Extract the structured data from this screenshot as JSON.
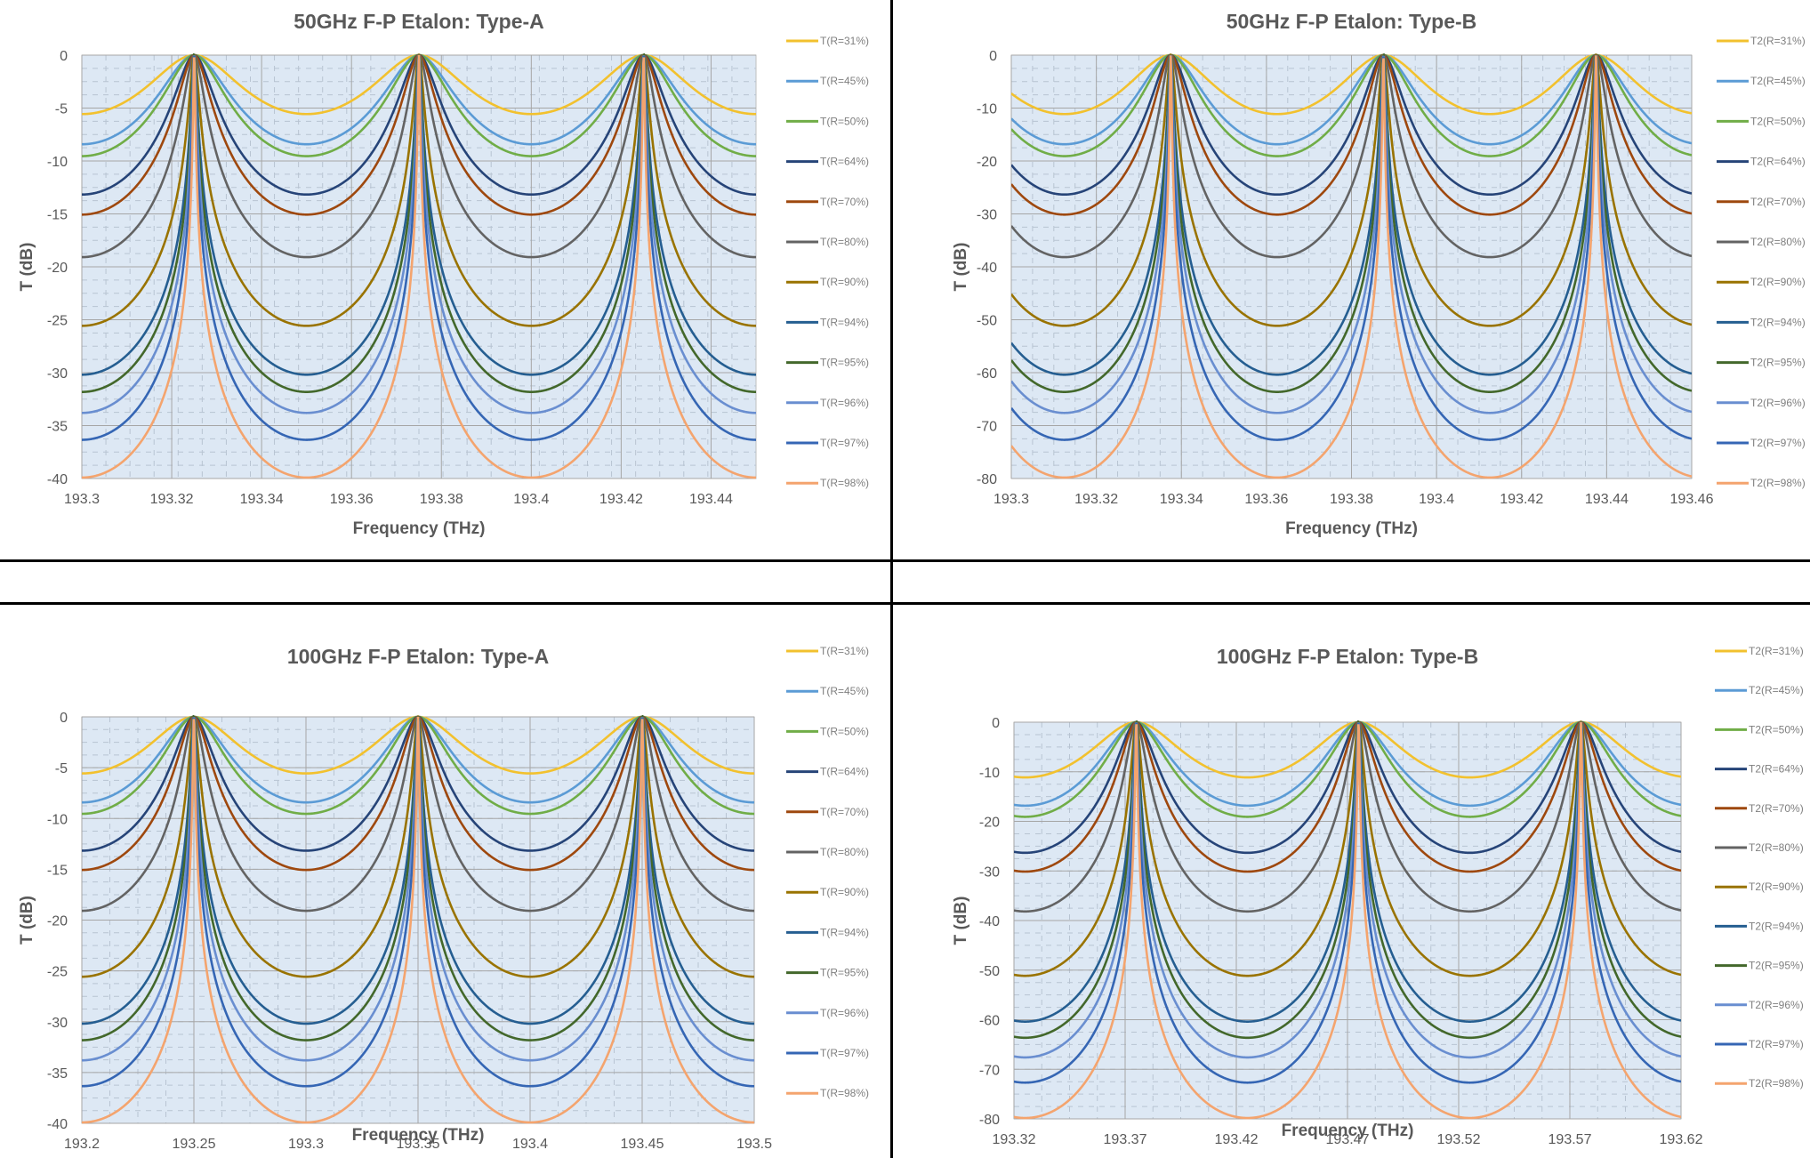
{
  "layout_text": "2x2 grid of Fabry-Perot etalon transmission charts",
  "series_meta": {
    "reflectivities": [
      31,
      45,
      50,
      64,
      70,
      80,
      90,
      94,
      95,
      96,
      97,
      98
    ],
    "colors": [
      "#f2c12e",
      "#5b9bd5",
      "#70ad47",
      "#264478",
      "#9e480e",
      "#636363",
      "#997300",
      "#255e91",
      "#43682b",
      "#698ed0",
      "#3566b4",
      "#f4a46e"
    ]
  },
  "chart_data": [
    {
      "id": "50a",
      "type": "line",
      "title": "50GHz F-P Etalon: Type-A",
      "xlabel": "Frequency (THz)",
      "ylabel": "T (dB)",
      "xlim": [
        193.3,
        193.45
      ],
      "ylim": [
        -40,
        0
      ],
      "xticks": [
        "193.3",
        "193.32",
        "193.34",
        "193.36",
        "193.38",
        "193.4",
        "193.42",
        "193.44"
      ],
      "xtick_values": [
        193.3,
        193.32,
        193.34,
        193.36,
        193.38,
        193.4,
        193.42,
        193.44
      ],
      "yticks": [
        "0",
        "-5",
        "-10",
        "-15",
        "-20",
        "-25",
        "-30",
        "-35",
        "-40"
      ],
      "ytick_values": [
        0,
        -5,
        -10,
        -15,
        -20,
        -25,
        -30,
        -35,
        -40
      ],
      "peaks_thz": [
        193.325,
        193.375,
        193.425
      ],
      "fsr_thz": 0.05,
      "power": 1,
      "grid": true,
      "legend_position": "right",
      "series": [
        {
          "name": "T(R=31%)",
          "R": 0.31,
          "min_db": -5.6
        },
        {
          "name": "T(R=45%)",
          "R": 0.45,
          "min_db": -8.4
        },
        {
          "name": "T(R=50%)",
          "R": 0.5,
          "min_db": -9.5
        },
        {
          "name": "T(R=64%)",
          "R": 0.64,
          "min_db": -13.2
        },
        {
          "name": "T(R=70%)",
          "R": 0.7,
          "min_db": -15.1
        },
        {
          "name": "T(R=80%)",
          "R": 0.8,
          "min_db": -19.1
        },
        {
          "name": "T(R=90%)",
          "R": 0.9,
          "min_db": -25.6
        },
        {
          "name": "T(R=94%)",
          "R": 0.94,
          "min_db": -30.2
        },
        {
          "name": "T(R=95%)",
          "R": 0.95,
          "min_db": -31.8
        },
        {
          "name": "T(R=96%)",
          "R": 0.96,
          "min_db": -33.8
        },
        {
          "name": "T(R=97%)",
          "R": 0.97,
          "min_db": -36.3
        },
        {
          "name": "T(R=98%)",
          "R": 0.98,
          "min_db": -39.9
        }
      ]
    },
    {
      "id": "50b",
      "type": "line",
      "title": "50GHz F-P Etalon: Type-B",
      "xlabel": "Frequency (THz)",
      "ylabel": "T (dB)",
      "xlim": [
        193.3,
        193.46
      ],
      "ylim": [
        -80,
        0
      ],
      "xticks": [
        "193.3",
        "193.32",
        "193.34",
        "193.36",
        "193.38",
        "193.4",
        "193.42",
        "193.44",
        "193.46"
      ],
      "xtick_values": [
        193.3,
        193.32,
        193.34,
        193.36,
        193.38,
        193.4,
        193.42,
        193.44,
        193.46
      ],
      "yticks": [
        "0",
        "-10",
        "-20",
        "-30",
        "-40",
        "-50",
        "-60",
        "-70",
        "-80"
      ],
      "ytick_values": [
        0,
        -10,
        -20,
        -30,
        -40,
        -50,
        -60,
        -70,
        -80
      ],
      "peaks_thz": [
        193.3375,
        193.3875,
        193.4375
      ],
      "fsr_thz": 0.05,
      "power": 2,
      "grid": true,
      "legend_position": "right",
      "series": [
        {
          "name": "T2(R=31%)",
          "R": 0.31,
          "min_db": -11.1
        },
        {
          "name": "T2(R=45%)",
          "R": 0.45,
          "min_db": -16.8
        },
        {
          "name": "T2(R=50%)",
          "R": 0.5,
          "min_db": -19.1
        },
        {
          "name": "T2(R=64%)",
          "R": 0.64,
          "min_db": -26.3
        },
        {
          "name": "T2(R=70%)",
          "R": 0.7,
          "min_db": -30.1
        },
        {
          "name": "T2(R=80%)",
          "R": 0.8,
          "min_db": -38.2
        },
        {
          "name": "T2(R=90%)",
          "R": 0.9,
          "min_db": -51.1
        },
        {
          "name": "T2(R=94%)",
          "R": 0.94,
          "min_db": -60.4
        },
        {
          "name": "T2(R=95%)",
          "R": 0.95,
          "min_db": -63.6
        },
        {
          "name": "T2(R=96%)",
          "R": 0.96,
          "min_db": -67.6
        },
        {
          "name": "T2(R=97%)",
          "R": 0.97,
          "min_db": -72.6
        },
        {
          "name": "T2(R=98%)",
          "R": 0.98,
          "min_db": -79.7
        }
      ]
    },
    {
      "id": "100a",
      "type": "line",
      "title": "100GHz F-P Etalon: Type-A",
      "xlabel": "Frequency (THz)",
      "ylabel": "T (dB)",
      "xlim": [
        193.2,
        193.5
      ],
      "ylim": [
        -40,
        0
      ],
      "xticks": [
        "193.2",
        "193.25",
        "193.3",
        "193.35",
        "193.4",
        "193.45",
        "193.5"
      ],
      "xtick_values": [
        193.2,
        193.25,
        193.3,
        193.35,
        193.4,
        193.45,
        193.5
      ],
      "yticks": [
        "0",
        "-5",
        "-10",
        "-15",
        "-20",
        "-25",
        "-30",
        "-35",
        "-40"
      ],
      "ytick_values": [
        0,
        -5,
        -10,
        -15,
        -20,
        -25,
        -30,
        -35,
        -40
      ],
      "peaks_thz": [
        193.25,
        193.35,
        193.45
      ],
      "fsr_thz": 0.1,
      "power": 1,
      "grid": true,
      "legend_position": "right",
      "series": [
        {
          "name": "T(R=31%)",
          "R": 0.31,
          "min_db": -5.6
        },
        {
          "name": "T(R=45%)",
          "R": 0.45,
          "min_db": -8.4
        },
        {
          "name": "T(R=50%)",
          "R": 0.5,
          "min_db": -9.5
        },
        {
          "name": "T(R=64%)",
          "R": 0.64,
          "min_db": -13.2
        },
        {
          "name": "T(R=70%)",
          "R": 0.7,
          "min_db": -15.1
        },
        {
          "name": "T(R=80%)",
          "R": 0.8,
          "min_db": -19.1
        },
        {
          "name": "T(R=90%)",
          "R": 0.9,
          "min_db": -25.6
        },
        {
          "name": "T(R=94%)",
          "R": 0.94,
          "min_db": -30.2
        },
        {
          "name": "T(R=95%)",
          "R": 0.95,
          "min_db": -31.8
        },
        {
          "name": "T(R=96%)",
          "R": 0.96,
          "min_db": -33.8
        },
        {
          "name": "T(R=97%)",
          "R": 0.97,
          "min_db": -36.3
        },
        {
          "name": "T(R=98%)",
          "R": 0.98,
          "min_db": -39.9
        }
      ]
    },
    {
      "id": "100b",
      "type": "line",
      "title": "100GHz F-P Etalon: Type-B",
      "xlabel": "Frequency (THz)",
      "ylabel": "T (dB)",
      "xlim": [
        193.32,
        193.62
      ],
      "ylim": [
        -80,
        0
      ],
      "xticks": [
        "193.32",
        "193.37",
        "193.42",
        "193.47",
        "193.52",
        "193.57",
        "193.62"
      ],
      "xtick_values": [
        193.32,
        193.37,
        193.42,
        193.47,
        193.52,
        193.57,
        193.62
      ],
      "yticks": [
        "0",
        "-10",
        "-20",
        "-30",
        "-40",
        "-50",
        "-60",
        "-70",
        "-80"
      ],
      "ytick_values": [
        0,
        -10,
        -20,
        -30,
        -40,
        -50,
        -60,
        -70,
        -80
      ],
      "peaks_thz": [
        193.375,
        193.475,
        193.575
      ],
      "fsr_thz": 0.1,
      "power": 2,
      "grid": true,
      "legend_position": "right",
      "series": [
        {
          "name": "T2(R=31%)",
          "R": 0.31,
          "min_db": -11.1
        },
        {
          "name": "T2(R=45%)",
          "R": 0.45,
          "min_db": -16.8
        },
        {
          "name": "T2(R=50%)",
          "R": 0.5,
          "min_db": -19.1
        },
        {
          "name": "T2(R=64%)",
          "R": 0.64,
          "min_db": -26.3
        },
        {
          "name": "T2(R=70%)",
          "R": 0.7,
          "min_db": -30.1
        },
        {
          "name": "T2(R=80%)",
          "R": 0.8,
          "min_db": -38.2
        },
        {
          "name": "T2(R=90%)",
          "R": 0.9,
          "min_db": -51.1
        },
        {
          "name": "T2(R=94%)",
          "R": 0.94,
          "min_db": -60.4
        },
        {
          "name": "T2(R=95%)",
          "R": 0.95,
          "min_db": -63.6
        },
        {
          "name": "T2(R=96%)",
          "R": 0.96,
          "min_db": -67.6
        },
        {
          "name": "T2(R=97%)",
          "R": 0.97,
          "min_db": -72.6
        },
        {
          "name": "T2(R=98%)",
          "R": 0.98,
          "min_db": -79.7
        }
      ]
    }
  ]
}
